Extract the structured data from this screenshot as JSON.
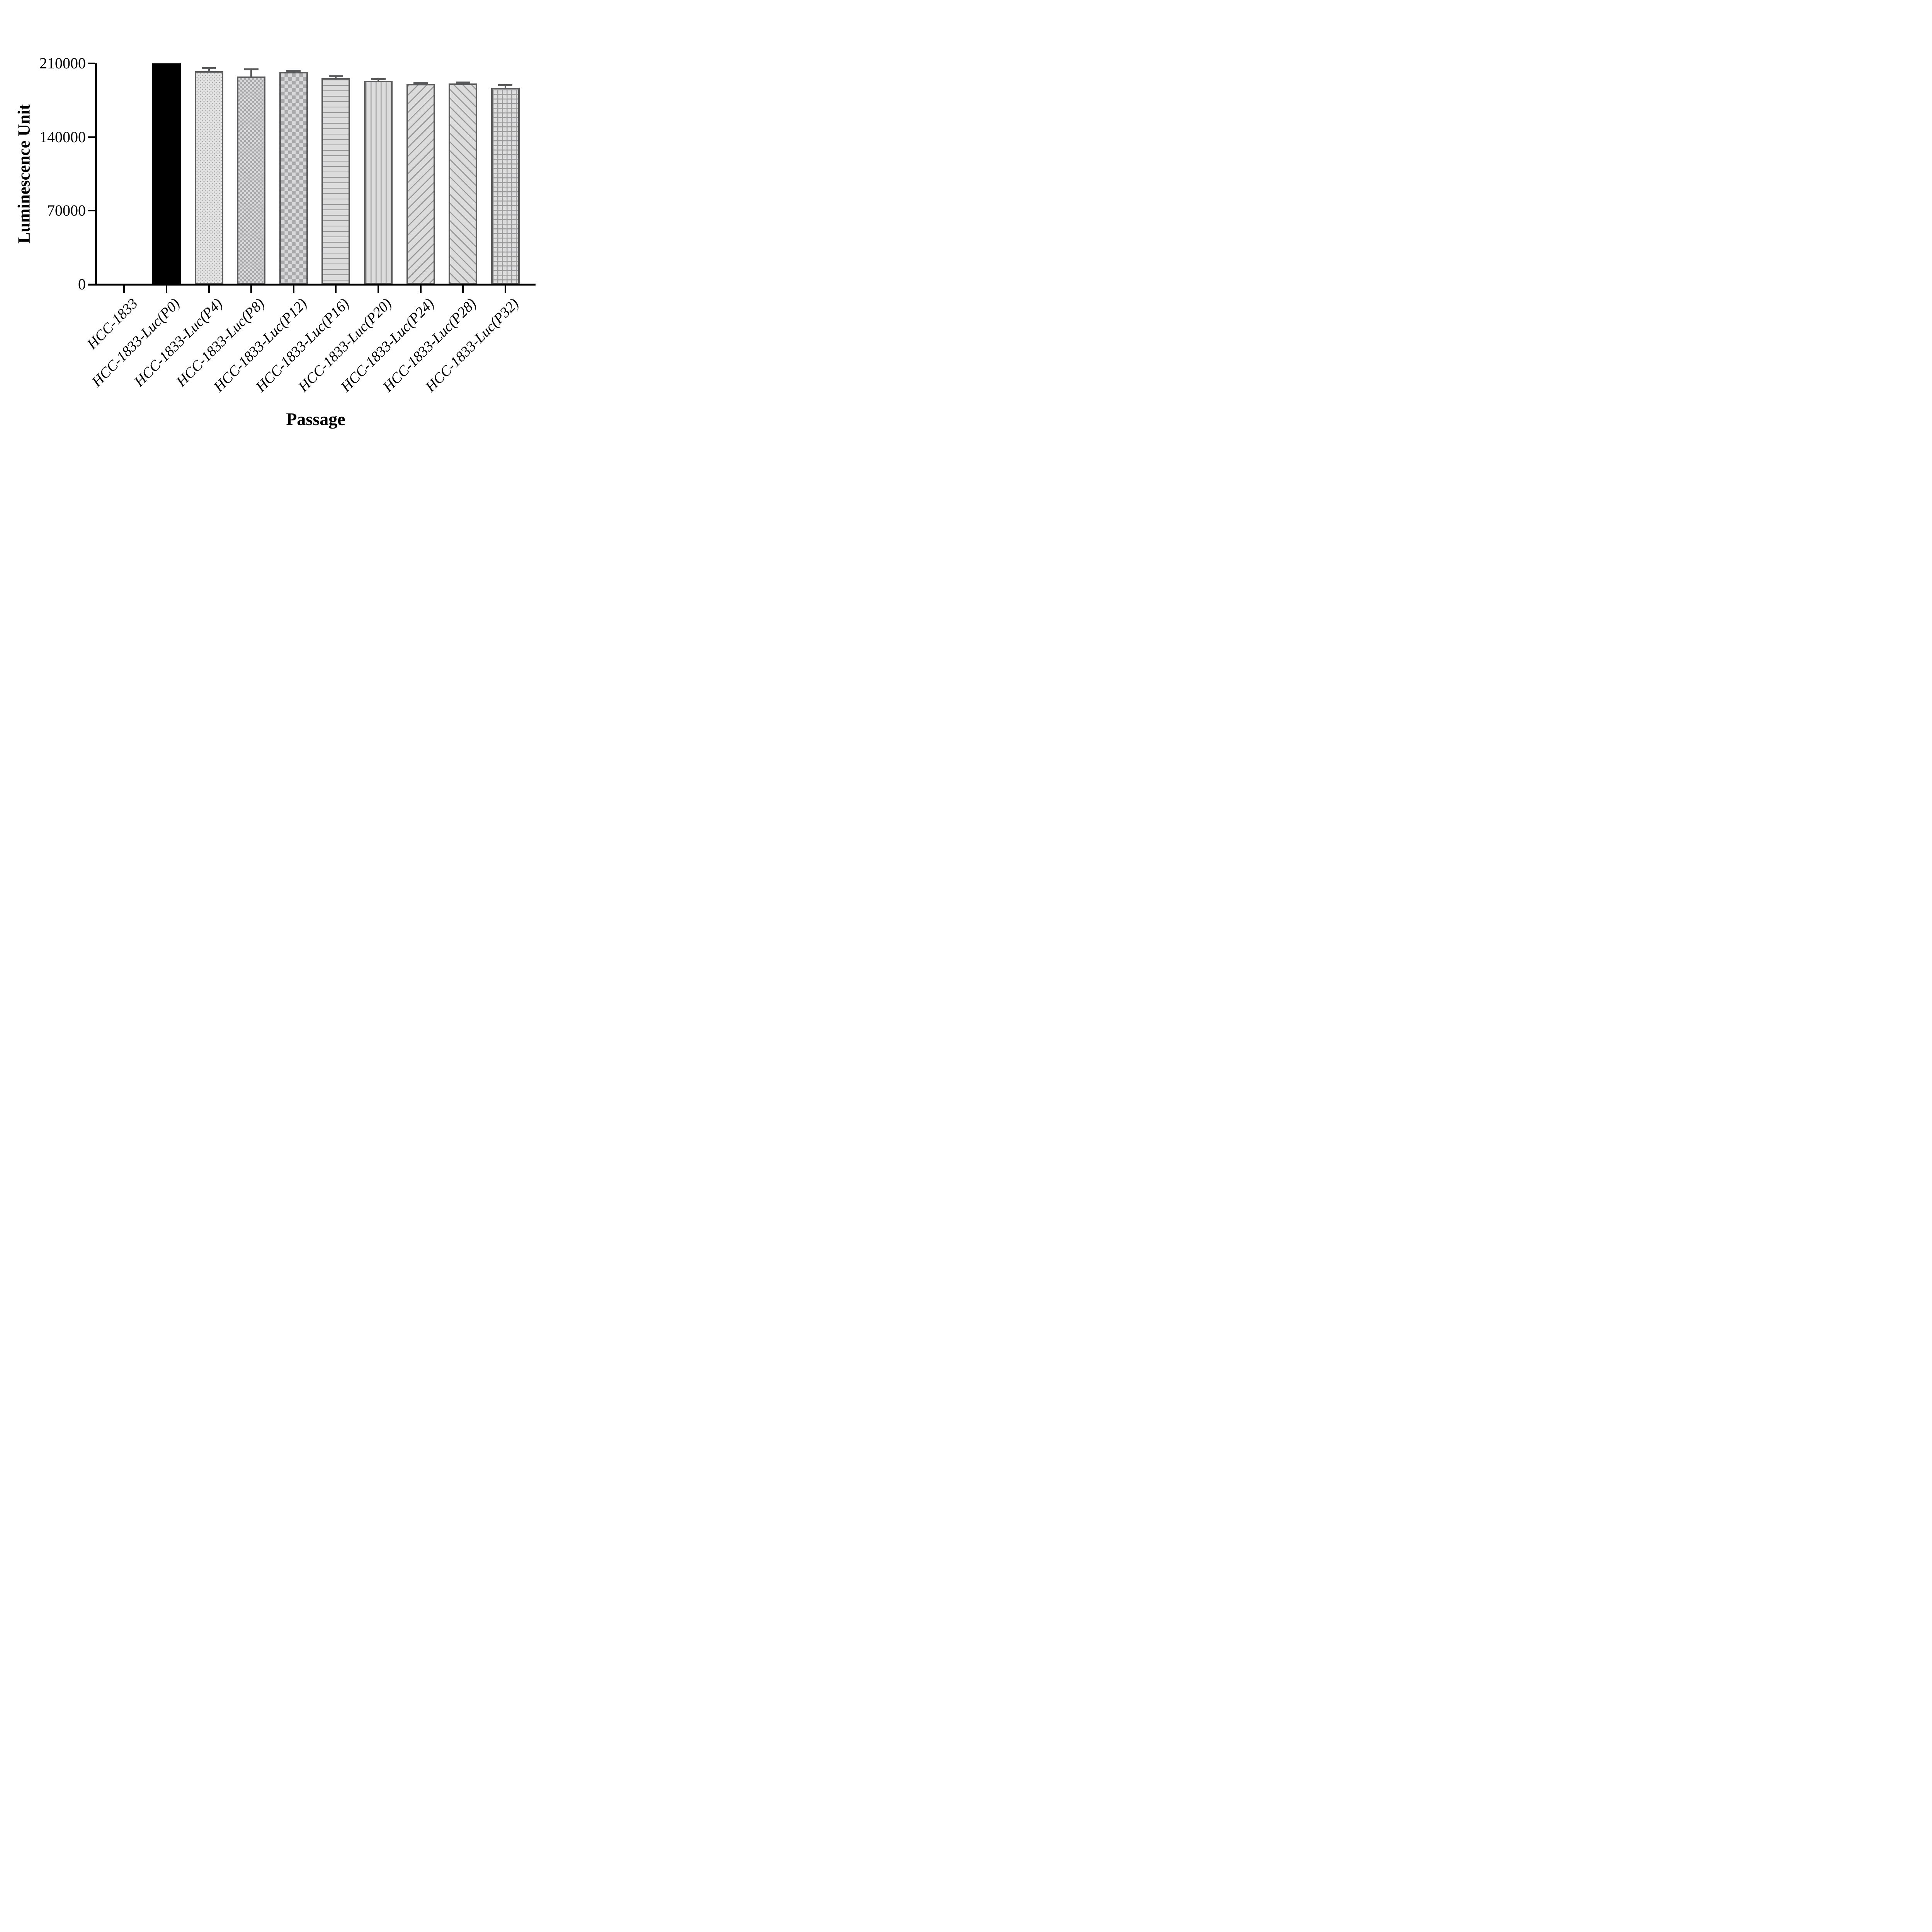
{
  "chart_data": {
    "type": "bar",
    "title": "",
    "xlabel": "Passage",
    "ylabel": "Luminescence Unit",
    "ylim": [
      0,
      210000
    ],
    "yticks": [
      0,
      70000,
      140000,
      210000
    ],
    "ytick_labels": [
      "0",
      "70000",
      "140000",
      "210000"
    ],
    "grid": false,
    "legend": false,
    "categories": [
      "HCC-1833",
      "HCC-1833-Luc(P0)",
      "HCC-1833-Luc(P4)",
      "HCC-1833-Luc(P8)",
      "HCC-1833-Luc(P12)",
      "HCC-1833-Luc(P16)",
      "HCC-1833-Luc(P20)",
      "HCC-1833-Luc(P24)",
      "HCC-1833-Luc(P28)",
      "HCC-1833-Luc(P32)"
    ],
    "values": [
      0,
      210000,
      202500,
      197500,
      202000,
      196000,
      193500,
      190500,
      191000,
      187000
    ],
    "errors_upper": [
      0,
      0,
      3800,
      7800,
      1700,
      2600,
      2400,
      1500,
      1600,
      3000
    ],
    "bar_patterns": [
      "none",
      "solid_black",
      "dots",
      "checker_small",
      "checker_large",
      "horizontal_lines",
      "vertical_lines",
      "diagonal_up",
      "diagonal_down",
      "grid"
    ],
    "colors": {
      "bar_outline": "#58595B",
      "error_bar": "#58595B",
      "pattern_dark": "#9B9B9E",
      "fill_light": "#DEDEDF",
      "solid_bar": "#000000",
      "axis": "#000000",
      "background": "#FFFFFF"
    }
  }
}
